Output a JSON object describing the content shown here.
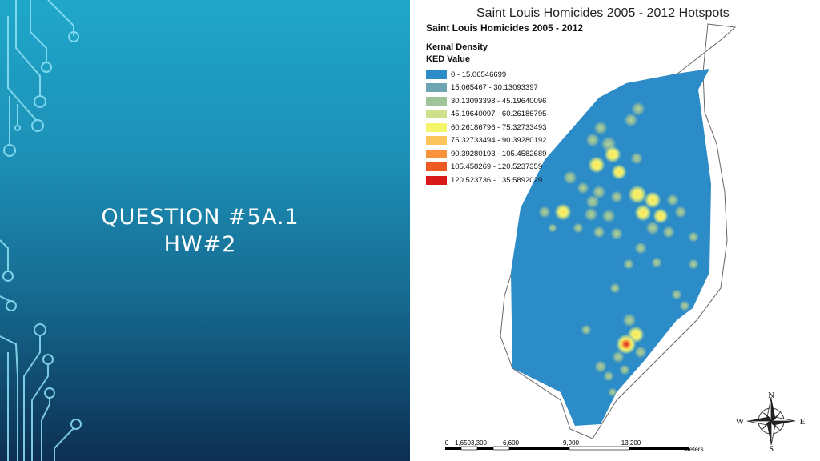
{
  "slide": {
    "title_line1": "QUESTION #5A.1",
    "title_line2": "HW#2"
  },
  "map": {
    "title": "Saint Louis Homicides 2005 - 2012 Hotspots",
    "legend": {
      "heading": "Saint Louis Homicides 2005 - 2012",
      "layer_name": "Kernal Density",
      "field_name": "KED Value",
      "classes": [
        {
          "label": "0 - 15.06546699",
          "color": "#2b8cc7"
        },
        {
          "label": "15.065467 - 30.13093397",
          "color": "#6ea5b3"
        },
        {
          "label": "30.13093398 - 45.19640096",
          "color": "#9fc49a"
        },
        {
          "label": "45.19640097 - 60.26186795",
          "color": "#cde08a"
        },
        {
          "label": "60.26186796 - 75.32733493",
          "color": "#f5f56b"
        },
        {
          "label": "75.32733494 - 90.39280192",
          "color": "#fcc55c"
        },
        {
          "label": "90.39280193 - 105.4582689",
          "color": "#f8923c"
        },
        {
          "label": "105.458269 - 120.5237359",
          "color": "#ee5a24"
        },
        {
          "label": "120.523736 - 135.5892029",
          "color": "#d7191c"
        }
      ]
    },
    "compass": {
      "n": "N",
      "s": "S",
      "e": "E",
      "w": "W"
    },
    "scale": {
      "ticks": [
        "0",
        "1,650",
        "3,300",
        "6,600",
        "9,900",
        "13,200"
      ],
      "unit": "Meters"
    }
  }
}
